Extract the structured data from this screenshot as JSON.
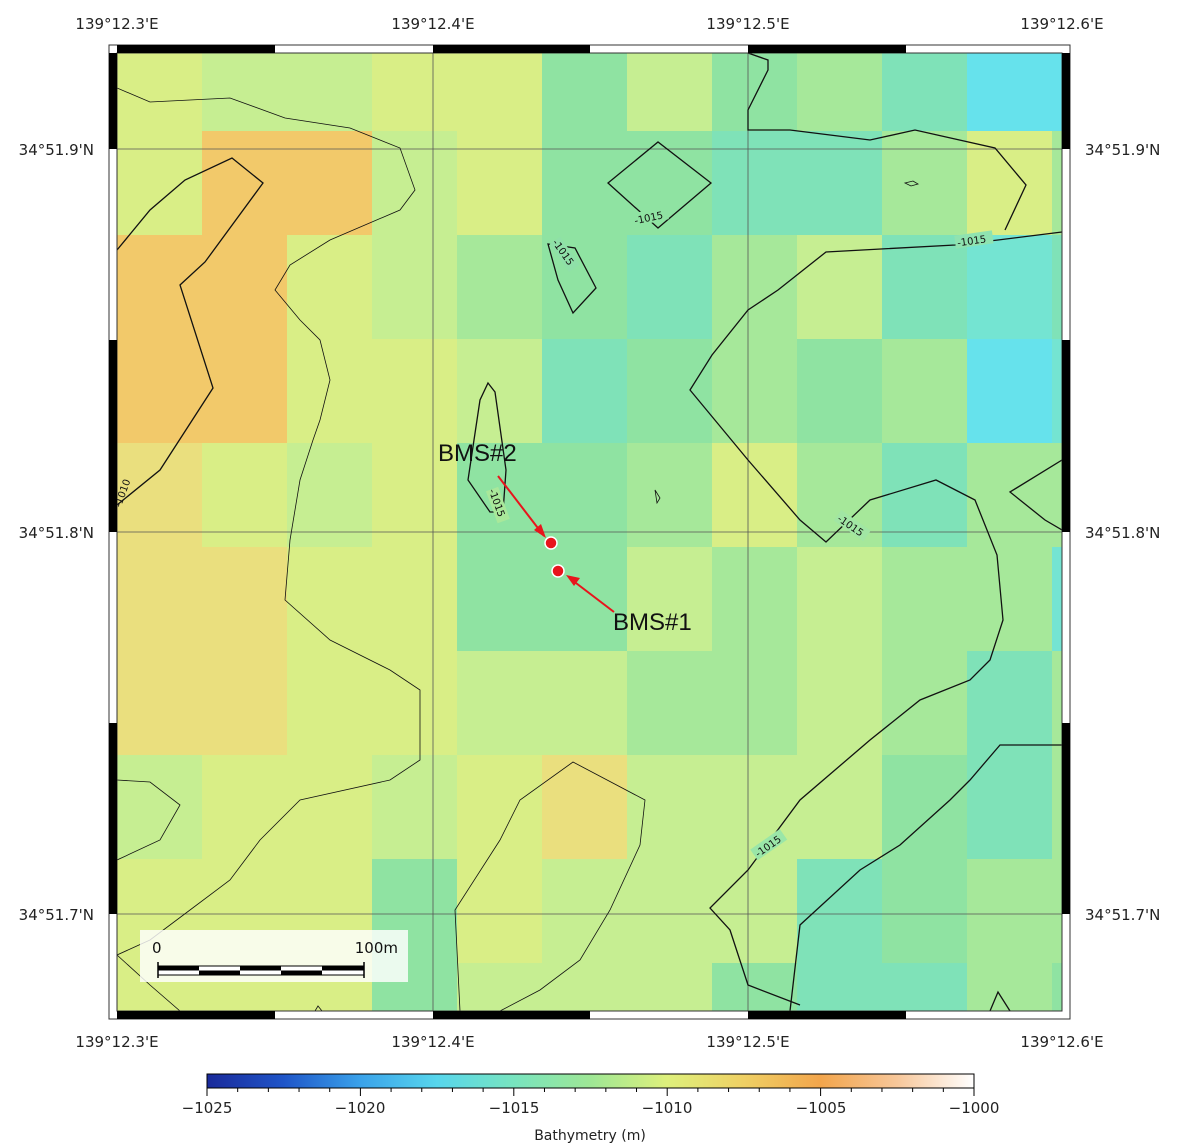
{
  "map": {
    "lon_labels": [
      "139°12.3'E",
      "139°12.4'E",
      "139°12.5'E",
      "139°12.6'E"
    ],
    "lat_labels": [
      "34°51.9'N",
      "34°51.8'N",
      "34°51.7'N"
    ],
    "contours": {
      "label_a": "-1015",
      "label_b": "-1010"
    },
    "sites": [
      {
        "name": "BMS#2",
        "color": "#e8141c"
      },
      {
        "name": "BMS#1",
        "color": "#e8141c"
      }
    ],
    "scale_bar": {
      "start": "0",
      "end": "100m"
    }
  },
  "colorbar": {
    "title": "Bathymetry (m)",
    "tick_labels": [
      "−1025",
      "−1020",
      "−1015",
      "−1010",
      "−1005",
      "−1000"
    ],
    "range": [
      -1025,
      -1000
    ],
    "colors": [
      "#1a1f8f",
      "#1e63d6",
      "#4dc3f0",
      "#6fe3c0",
      "#8fe39a",
      "#d9ee7e",
      "#f0c455",
      "#f4a24a",
      "#fbe6cf",
      "#ffffff"
    ]
  }
}
